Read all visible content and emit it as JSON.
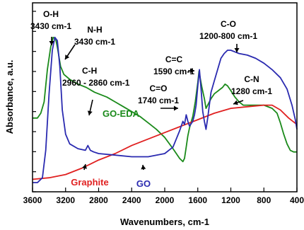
{
  "chart_data": {
    "type": "line",
    "xlabel": "Wavenumbers, cm-1",
    "ylabel": "Absorbance, a.u.",
    "xlim": [
      3600,
      400
    ],
    "x_reversed": true,
    "x_ticks": [
      3600,
      3200,
      2800,
      2400,
      2000,
      1600,
      1200,
      800,
      400
    ],
    "y_tick_labels": false,
    "grid": false,
    "series": [
      {
        "name": "GO-EDA",
        "color": "#1a8a1a",
        "points": [
          [
            3600,
            0.4
          ],
          [
            3540,
            0.4
          ],
          [
            3500,
            0.43
          ],
          [
            3460,
            0.5
          ],
          [
            3420,
            0.7
          ],
          [
            3380,
            0.84
          ],
          [
            3350,
            0.9
          ],
          [
            3320,
            0.89
          ],
          [
            3300,
            0.84
          ],
          [
            3260,
            0.72
          ],
          [
            3220,
            0.67
          ],
          [
            3150,
            0.64
          ],
          [
            3050,
            0.61
          ],
          [
            2950,
            0.59
          ],
          [
            2850,
            0.56
          ],
          [
            2700,
            0.53
          ],
          [
            2600,
            0.5
          ],
          [
            2500,
            0.47
          ],
          [
            2400,
            0.44
          ],
          [
            2300,
            0.41
          ],
          [
            2200,
            0.37
          ],
          [
            2100,
            0.33
          ],
          [
            2000,
            0.28
          ],
          [
            1900,
            0.21
          ],
          [
            1820,
            0.15
          ],
          [
            1780,
            0.13
          ],
          [
            1760,
            0.15
          ],
          [
            1740,
            0.22
          ],
          [
            1720,
            0.29
          ],
          [
            1700,
            0.34
          ],
          [
            1660,
            0.41
          ],
          [
            1630,
            0.5
          ],
          [
            1600,
            0.62
          ],
          [
            1585,
            0.69
          ],
          [
            1575,
            0.66
          ],
          [
            1550,
            0.59
          ],
          [
            1520,
            0.52
          ],
          [
            1500,
            0.46
          ],
          [
            1470,
            0.49
          ],
          [
            1440,
            0.52
          ],
          [
            1400,
            0.55
          ],
          [
            1350,
            0.57
          ],
          [
            1300,
            0.59
          ],
          [
            1270,
            0.61
          ],
          [
            1240,
            0.6
          ],
          [
            1200,
            0.57
          ],
          [
            1150,
            0.53
          ],
          [
            1100,
            0.5
          ],
          [
            1050,
            0.48
          ],
          [
            1000,
            0.48
          ],
          [
            900,
            0.48
          ],
          [
            800,
            0.48
          ],
          [
            700,
            0.46
          ],
          [
            640,
            0.43
          ],
          [
            600,
            0.37
          ],
          [
            560,
            0.3
          ],
          [
            520,
            0.24
          ],
          [
            480,
            0.2
          ],
          [
            440,
            0.19
          ],
          [
            400,
            0.19
          ]
        ]
      },
      {
        "name": "Graphite",
        "color": "#e02020",
        "points": [
          [
            3600,
            0.02
          ],
          [
            3400,
            0.03
          ],
          [
            3200,
            0.05
          ],
          [
            3000,
            0.09
          ],
          [
            2800,
            0.14
          ],
          [
            2600,
            0.18
          ],
          [
            2400,
            0.23
          ],
          [
            2200,
            0.27
          ],
          [
            2000,
            0.31
          ],
          [
            1800,
            0.35
          ],
          [
            1600,
            0.39
          ],
          [
            1400,
            0.43
          ],
          [
            1200,
            0.46
          ],
          [
            1000,
            0.47
          ],
          [
            800,
            0.48
          ],
          [
            700,
            0.48
          ],
          [
            600,
            0.45
          ],
          [
            500,
            0.4
          ],
          [
            400,
            0.36
          ]
        ]
      },
      {
        "name": "GO",
        "color": "#2a2ab0",
        "points": [
          [
            3600,
            0.0
          ],
          [
            3540,
            0.0
          ],
          [
            3480,
            0.03
          ],
          [
            3440,
            0.2
          ],
          [
            3400,
            0.55
          ],
          [
            3360,
            0.82
          ],
          [
            3330,
            0.9
          ],
          [
            3300,
            0.88
          ],
          [
            3270,
            0.72
          ],
          [
            3240,
            0.45
          ],
          [
            3200,
            0.3
          ],
          [
            3150,
            0.24
          ],
          [
            3050,
            0.21
          ],
          [
            2960,
            0.2
          ],
          [
            2930,
            0.23
          ],
          [
            2900,
            0.2
          ],
          [
            2860,
            0.19
          ],
          [
            2800,
            0.18
          ],
          [
            2600,
            0.17
          ],
          [
            2400,
            0.16
          ],
          [
            2200,
            0.16
          ],
          [
            2100,
            0.17
          ],
          [
            2000,
            0.18
          ],
          [
            1900,
            0.22
          ],
          [
            1820,
            0.32
          ],
          [
            1780,
            0.38
          ],
          [
            1760,
            0.36
          ],
          [
            1740,
            0.42
          ],
          [
            1720,
            0.38
          ],
          [
            1700,
            0.35
          ],
          [
            1660,
            0.38
          ],
          [
            1640,
            0.42
          ],
          [
            1620,
            0.48
          ],
          [
            1600,
            0.6
          ],
          [
            1580,
            0.7
          ],
          [
            1560,
            0.58
          ],
          [
            1540,
            0.44
          ],
          [
            1520,
            0.38
          ],
          [
            1500,
            0.33
          ],
          [
            1480,
            0.4
          ],
          [
            1460,
            0.48
          ],
          [
            1440,
            0.56
          ],
          [
            1400,
            0.63
          ],
          [
            1360,
            0.7
          ],
          [
            1320,
            0.77
          ],
          [
            1280,
            0.8
          ],
          [
            1240,
            0.82
          ],
          [
            1200,
            0.82
          ],
          [
            1150,
            0.81
          ],
          [
            1100,
            0.8
          ],
          [
            1000,
            0.79
          ],
          [
            900,
            0.77
          ],
          [
            800,
            0.74
          ],
          [
            700,
            0.7
          ],
          [
            600,
            0.65
          ],
          [
            520,
            0.58
          ],
          [
            460,
            0.48
          ],
          [
            420,
            0.39
          ],
          [
            400,
            0.33
          ]
        ]
      }
    ],
    "annotations": [
      {
        "key": "oh",
        "lines": [
          "O-H",
          "3430 cm-1"
        ]
      },
      {
        "key": "nh",
        "lines": [
          "N-H",
          "3430 cm-1"
        ]
      },
      {
        "key": "ch",
        "lines": [
          "C-H",
          "2960 - 2860 cm-1"
        ]
      },
      {
        "key": "cc",
        "lines": [
          "C=C",
          "1590 cm-1"
        ]
      },
      {
        "key": "co2",
        "lines": [
          "C=O",
          "1740 cm-1"
        ]
      },
      {
        "key": "cO",
        "lines": [
          "C-O",
          "1200-800 cm-1"
        ]
      },
      {
        "key": "cn",
        "lines": [
          "C-N",
          "1280 cm-1"
        ]
      }
    ],
    "series_labels": [
      {
        "text": "GO-EDA",
        "color": "#1a8a1a"
      },
      {
        "text": "Graphite",
        "color": "#e02020"
      },
      {
        "text": "GO",
        "color": "#2a2ab0"
      }
    ]
  }
}
